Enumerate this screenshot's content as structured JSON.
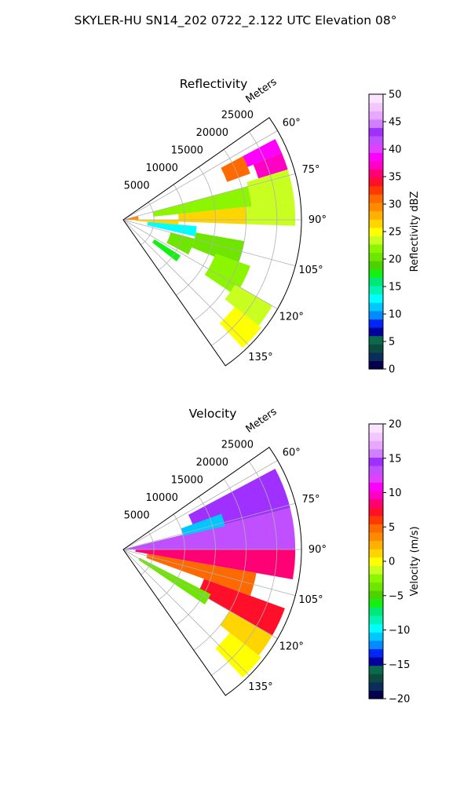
{
  "suptitle": "SKYLER-HU  SN14_202  0722_2.122 UTC Elevation 08°",
  "chart_data": [
    {
      "type": "heatmap",
      "subtype": "polar sector (PPI radar)",
      "title": "Reflectivity",
      "range_label": "Meters",
      "range_ticks": [
        "5000",
        "10000",
        "15000",
        "20000",
        "25000"
      ],
      "range_tick_values": [
        5000,
        10000,
        15000,
        20000,
        25000
      ],
      "rmax": 29000,
      "azimuth_ticks": [
        "60°",
        "75°",
        "90°",
        "105°",
        "120°",
        "135°"
      ],
      "azimuth_tick_values": [
        60,
        75,
        90,
        105,
        120,
        135
      ],
      "azimuth_range": [
        55,
        145
      ],
      "grid": true,
      "colorbar": {
        "label": "Reflectivity dBZ",
        "ticks": [
          "0",
          "5",
          "10",
          "15",
          "20",
          "25",
          "30",
          "35",
          "40",
          "45",
          "50"
        ],
        "range": [
          0,
          50
        ]
      },
      "cells": [
        {
          "az": [
            76,
            90
          ],
          "r": [
            0,
            2500
          ],
          "v": 29
        },
        {
          "az": [
            62,
            67
          ],
          "r": [
            22000,
            28000
          ],
          "v": 39
        },
        {
          "az": [
            67,
            73
          ],
          "r": [
            23000,
            28000
          ],
          "v": 37
        },
        {
          "az": [
            62,
            70
          ],
          "r": [
            18000,
            22000
          ],
          "v": 31
        },
        {
          "az": [
            73,
            84
          ],
          "r": [
            21000,
            28000
          ],
          "v": 23
        },
        {
          "az": [
            84,
            92
          ],
          "r": [
            9000,
            20000
          ],
          "v": 27
        },
        {
          "az": [
            84,
            92
          ],
          "r": [
            20000,
            28000
          ],
          "v": 24
        },
        {
          "az": [
            90,
            95
          ],
          "r": [
            2000,
            9000
          ],
          "v": 26
        },
        {
          "az": [
            75,
            84
          ],
          "r": [
            5000,
            21000
          ],
          "v": 22
        },
        {
          "az": [
            95,
            103
          ],
          "r": [
            4000,
            12000
          ],
          "v": 13
        },
        {
          "az": [
            100,
            112
          ],
          "r": [
            12000,
            20000
          ],
          "v": 21
        },
        {
          "az": [
            105,
            118
          ],
          "r": [
            8000,
            12000
          ],
          "v": 20
        },
        {
          "az": [
            110,
            124
          ],
          "r": [
            16000,
            22000
          ],
          "v": 22
        },
        {
          "az": [
            120,
            128
          ],
          "r": [
            21000,
            28000
          ],
          "v": 24
        },
        {
          "az": [
            128,
            137
          ],
          "r": [
            23000,
            28500
          ],
          "v": 25
        },
        {
          "az": [
            122,
            128
          ],
          "r": [
            6000,
            11000
          ],
          "v": 18
        }
      ]
    },
    {
      "type": "heatmap",
      "subtype": "polar sector (PPI radar)",
      "title": "Velocity",
      "range_label": "Meters",
      "range_ticks": [
        "5000",
        "10000",
        "15000",
        "20000",
        "25000"
      ],
      "range_tick_values": [
        5000,
        10000,
        15000,
        20000,
        25000
      ],
      "rmax": 29000,
      "azimuth_ticks": [
        "60°",
        "75°",
        "90°",
        "105°",
        "120°",
        "135°"
      ],
      "azimuth_tick_values": [
        60,
        75,
        90,
        105,
        120,
        135
      ],
      "azimuth_range": [
        55,
        145
      ],
      "grid": true,
      "colorbar": {
        "label": "Velocity (m/s)",
        "ticks": [
          "−20",
          "−15",
          "−10",
          "−5",
          "0",
          "5",
          "10",
          "15",
          "20"
        ],
        "range": [
          -20,
          20
        ]
      },
      "cells": [
        {
          "az": [
            76,
            90
          ],
          "r": [
            0,
            28000
          ],
          "v": 13
        },
        {
          "az": [
            62,
            76
          ],
          "r": [
            12000,
            28000
          ],
          "v": 15
        },
        {
          "az": [
            70,
            77
          ],
          "r": [
            10000,
            17000
          ],
          "v": -11
        },
        {
          "az": [
            90,
            100
          ],
          "r": [
            2000,
            28000
          ],
          "v": 9
        },
        {
          "az": [
            100,
            110
          ],
          "r": [
            4000,
            22000
          ],
          "v": 5
        },
        {
          "az": [
            110,
            120
          ],
          "r": [
            14000,
            28000
          ],
          "v": 7
        },
        {
          "az": [
            120,
            128
          ],
          "r": [
            20000,
            28000
          ],
          "v": 1
        },
        {
          "az": [
            128,
            137
          ],
          "r": [
            22000,
            28500
          ],
          "v": 0
        },
        {
          "az": [
            117,
            124
          ],
          "r": [
            3000,
            16000
          ],
          "v": -4
        }
      ]
    }
  ],
  "palettes": {
    "reflectivity": [
      "#04004e",
      "#0b2d5a",
      "#0d4a40",
      "#0b6a4b",
      "#02009c",
      "#0026f7",
      "#008cff",
      "#00c8ff",
      "#00ffff",
      "#00f5b4",
      "#00e878",
      "#14f014",
      "#4cd200",
      "#6ee600",
      "#8cf500",
      "#c8ff20",
      "#ffff00",
      "#ffd500",
      "#ffb000",
      "#ff8a00",
      "#ff6a00",
      "#ff3a00",
      "#ff0f29",
      "#ff0075",
      "#ff00c4",
      "#ff00ff",
      "#e040ff",
      "#c050ff",
      "#a030ff",
      "#d080ff",
      "#e8a8ff",
      "#f2c6ff",
      "#fbe4ff"
    ],
    "velocity": [
      "#04004e",
      "#0b2d5a",
      "#0d4a40",
      "#0b6a4b",
      "#02009c",
      "#0026f7",
      "#008cff",
      "#00c8ff",
      "#00ffff",
      "#00f5b4",
      "#00e878",
      "#14f014",
      "#4cd200",
      "#6ee600",
      "#8cf500",
      "#c8ff20",
      "#ffff00",
      "#ffd500",
      "#ffb000",
      "#ff8a00",
      "#ff6a00",
      "#ff3a00",
      "#ff0f29",
      "#ff0075",
      "#ff00c4",
      "#ff00ff",
      "#e040ff",
      "#c050ff",
      "#a030ff",
      "#d080ff",
      "#e8a8ff",
      "#f2c6ff",
      "#fbe4ff"
    ]
  }
}
